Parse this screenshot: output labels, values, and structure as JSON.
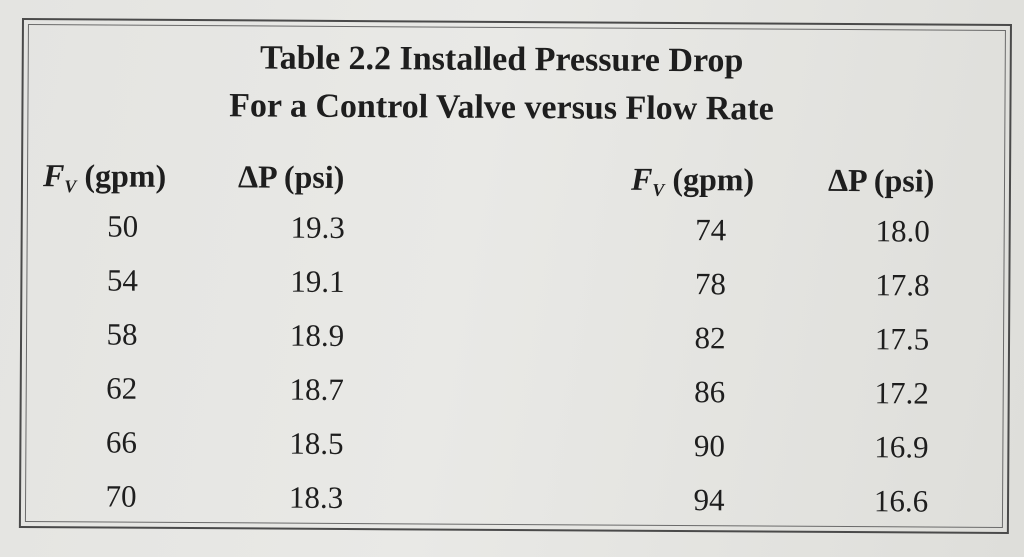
{
  "table": {
    "title_line1": "Table 2.2  Installed Pressure Drop",
    "title_line2": "For a Control Valve versus Flow Rate",
    "headers": {
      "fv_symbol": "F",
      "fv_subscript": "V",
      "fv_unit": " (gpm)",
      "dp": "ΔP (psi)"
    },
    "left_rows": [
      {
        "fv": "50",
        "dp": "19.3"
      },
      {
        "fv": "54",
        "dp": "19.1"
      },
      {
        "fv": "58",
        "dp": "18.9"
      },
      {
        "fv": "62",
        "dp": "18.7"
      },
      {
        "fv": "66",
        "dp": "18.5"
      },
      {
        "fv": "70",
        "dp": "18.3"
      }
    ],
    "right_rows": [
      {
        "fv": "74",
        "dp": "18.0"
      },
      {
        "fv": "78",
        "dp": "17.8"
      },
      {
        "fv": "82",
        "dp": "17.5"
      },
      {
        "fv": "86",
        "dp": "17.2"
      },
      {
        "fv": "90",
        "dp": "16.9"
      },
      {
        "fv": "94",
        "dp": "16.6"
      }
    ]
  }
}
